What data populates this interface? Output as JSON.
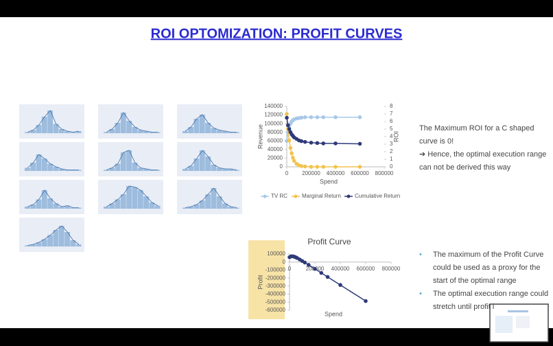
{
  "title": "ROI OPTOMIZATION: PROFIT CURVES",
  "text_block": [
    "The Maximum ROI for a C shaped",
    "curve is 0!",
    "➔ Hence, the optimal execution range",
    "can not be  derived this way"
  ],
  "bullets": [
    [
      "The maximum of the Profit Curve",
      "could be used as a proxy for the",
      "start of the optimal range"
    ],
    [
      "The optimal execution range could",
      "stretch until profit i"
    ]
  ],
  "chart_data": [
    {
      "type": "histogram",
      "color": "#8fb3d9",
      "values": [
        1,
        3,
        8,
        16,
        22,
        9,
        4,
        2,
        1,
        2
      ],
      "ylim": [
        0,
        24
      ]
    },
    {
      "type": "histogram",
      "color": "#8fb3d9",
      "values": [
        1,
        4,
        10,
        20,
        12,
        6,
        3,
        2,
        1,
        1
      ],
      "ylim": [
        0,
        24
      ]
    },
    {
      "type": "histogram",
      "color": "#8fb3d9",
      "values": [
        2,
        6,
        14,
        18,
        10,
        5,
        3,
        2,
        1,
        1
      ],
      "ylim": [
        0,
        24
      ]
    },
    {
      "type": "histogram",
      "color": "#8fb3d9",
      "values": [
        3,
        8,
        16,
        12,
        7,
        4,
        2,
        1,
        1,
        1
      ],
      "ylim": [
        0,
        24
      ]
    },
    {
      "type": "histogram",
      "color": "#8fb3d9",
      "values": [
        1,
        3,
        7,
        18,
        20,
        8,
        3,
        2,
        1,
        1
      ],
      "ylim": [
        0,
        24
      ]
    },
    {
      "type": "histogram",
      "color": "#8fb3d9",
      "values": [
        2,
        5,
        12,
        20,
        14,
        6,
        3,
        2,
        2,
        1
      ],
      "ylim": [
        0,
        24
      ]
    },
    {
      "type": "histogram",
      "color": "#8fb3d9",
      "values": [
        2,
        4,
        9,
        18,
        10,
        5,
        2,
        3,
        1,
        1
      ],
      "ylim": [
        0,
        24
      ]
    },
    {
      "type": "histogram",
      "color": "#8fb3d9",
      "values": [
        2,
        5,
        9,
        14,
        22,
        21,
        18,
        12,
        6,
        3
      ],
      "ylim": [
        0,
        24
      ]
    },
    {
      "type": "histogram",
      "color": "#8fb3d9",
      "values": [
        1,
        2,
        4,
        8,
        14,
        20,
        12,
        5,
        2,
        1
      ],
      "ylim": [
        0,
        24
      ]
    },
    {
      "type": "histogram",
      "color": "#8fb3d9",
      "values": [
        1,
        2,
        4,
        7,
        11,
        16,
        20,
        14,
        6,
        2
      ],
      "ylim": [
        0,
        24
      ]
    },
    {
      "type": "line",
      "x_label": "Spend",
      "y_label": "Revenue",
      "y2_label": "ROI",
      "x": [
        0,
        10000,
        20000,
        30000,
        40000,
        50000,
        60000,
        80000,
        100000,
        120000,
        150000,
        200000,
        250000,
        300000,
        400000,
        600000
      ],
      "xlim": [
        0,
        800000
      ],
      "xticks": [
        0,
        200000,
        400000,
        600000,
        800000
      ],
      "ylim": [
        0,
        140000
      ],
      "yticks": [
        0,
        20000,
        40000,
        60000,
        80000,
        100000,
        120000,
        140000
      ],
      "y2lim": [
        0,
        8
      ],
      "y2ticks": [
        0,
        1,
        2,
        3,
        4,
        5,
        6,
        7,
        8
      ],
      "legend": "bottom",
      "series": [
        {
          "name": "TV RC",
          "color": "#a8c8e8",
          "values": [
            60000,
            80000,
            92000,
            100000,
            105000,
            108000,
            110000,
            112000,
            113000,
            114000,
            115000,
            115000,
            115000,
            115000,
            115000,
            115000
          ]
        },
        {
          "name": "Marginal Return",
          "color": "#f2c34e",
          "axis": "y2",
          "values": [
            7,
            5,
            3.5,
            2.5,
            1.8,
            1.2,
            0.8,
            0.4,
            0.2,
            0.1,
            0.05,
            0,
            0,
            0,
            0,
            0
          ]
        },
        {
          "name": "Cumulative Return",
          "color": "#2f3a78",
          "axis": "y2",
          "values": [
            6.5,
            5.5,
            5,
            4.6,
            4.3,
            4.1,
            3.9,
            3.7,
            3.5,
            3.4,
            3.3,
            3.2,
            3.15,
            3.1,
            3.1,
            3.05
          ]
        }
      ]
    },
    {
      "type": "profit",
      "title": "Profit Curve",
      "x_label": "Spend",
      "y_label": "Profit",
      "x": [
        0,
        10000,
        20000,
        30000,
        40000,
        50000,
        60000,
        80000,
        100000,
        120000,
        150000,
        200000,
        250000,
        300000,
        400000,
        600000
      ],
      "xlim": [
        0,
        800000
      ],
      "xticks": [
        0,
        200000,
        400000,
        600000,
        800000
      ],
      "ylim": [
        -600000,
        100000
      ],
      "yticks": [
        -600000,
        -500000,
        -400000,
        -300000,
        -200000,
        -100000,
        0,
        100000
      ],
      "series": [
        {
          "color": "#2f3a78",
          "values": [
            60000,
            70000,
            72000,
            70000,
            65000,
            58000,
            50000,
            32000,
            13000,
            -6000,
            -35000,
            -85000,
            -135000,
            -185000,
            -285000,
            -485000
          ]
        }
      ]
    }
  ]
}
